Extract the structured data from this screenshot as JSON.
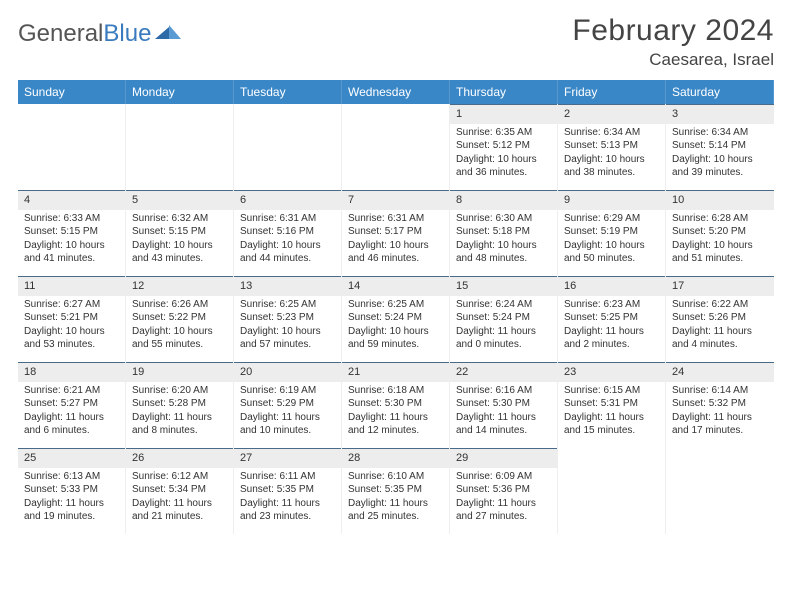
{
  "logo": {
    "text1": "General",
    "text2": "Blue"
  },
  "title": "February 2024",
  "location": "Caesarea, Israel",
  "header_bg": "#3a87c7",
  "daynum_bg": "#ededed",
  "daynum_border": "#4a6a8a",
  "dow": [
    "Sunday",
    "Monday",
    "Tuesday",
    "Wednesday",
    "Thursday",
    "Friday",
    "Saturday"
  ],
  "weeks": [
    [
      null,
      null,
      null,
      null,
      {
        "n": "1",
        "sr": "6:35 AM",
        "ss": "5:12 PM",
        "dl": "10 hours and 36 minutes."
      },
      {
        "n": "2",
        "sr": "6:34 AM",
        "ss": "5:13 PM",
        "dl": "10 hours and 38 minutes."
      },
      {
        "n": "3",
        "sr": "6:34 AM",
        "ss": "5:14 PM",
        "dl": "10 hours and 39 minutes."
      }
    ],
    [
      {
        "n": "4",
        "sr": "6:33 AM",
        "ss": "5:15 PM",
        "dl": "10 hours and 41 minutes."
      },
      {
        "n": "5",
        "sr": "6:32 AM",
        "ss": "5:15 PM",
        "dl": "10 hours and 43 minutes."
      },
      {
        "n": "6",
        "sr": "6:31 AM",
        "ss": "5:16 PM",
        "dl": "10 hours and 44 minutes."
      },
      {
        "n": "7",
        "sr": "6:31 AM",
        "ss": "5:17 PM",
        "dl": "10 hours and 46 minutes."
      },
      {
        "n": "8",
        "sr": "6:30 AM",
        "ss": "5:18 PM",
        "dl": "10 hours and 48 minutes."
      },
      {
        "n": "9",
        "sr": "6:29 AM",
        "ss": "5:19 PM",
        "dl": "10 hours and 50 minutes."
      },
      {
        "n": "10",
        "sr": "6:28 AM",
        "ss": "5:20 PM",
        "dl": "10 hours and 51 minutes."
      }
    ],
    [
      {
        "n": "11",
        "sr": "6:27 AM",
        "ss": "5:21 PM",
        "dl": "10 hours and 53 minutes."
      },
      {
        "n": "12",
        "sr": "6:26 AM",
        "ss": "5:22 PM",
        "dl": "10 hours and 55 minutes."
      },
      {
        "n": "13",
        "sr": "6:25 AM",
        "ss": "5:23 PM",
        "dl": "10 hours and 57 minutes."
      },
      {
        "n": "14",
        "sr": "6:25 AM",
        "ss": "5:24 PM",
        "dl": "10 hours and 59 minutes."
      },
      {
        "n": "15",
        "sr": "6:24 AM",
        "ss": "5:24 PM",
        "dl": "11 hours and 0 minutes."
      },
      {
        "n": "16",
        "sr": "6:23 AM",
        "ss": "5:25 PM",
        "dl": "11 hours and 2 minutes."
      },
      {
        "n": "17",
        "sr": "6:22 AM",
        "ss": "5:26 PM",
        "dl": "11 hours and 4 minutes."
      }
    ],
    [
      {
        "n": "18",
        "sr": "6:21 AM",
        "ss": "5:27 PM",
        "dl": "11 hours and 6 minutes."
      },
      {
        "n": "19",
        "sr": "6:20 AM",
        "ss": "5:28 PM",
        "dl": "11 hours and 8 minutes."
      },
      {
        "n": "20",
        "sr": "6:19 AM",
        "ss": "5:29 PM",
        "dl": "11 hours and 10 minutes."
      },
      {
        "n": "21",
        "sr": "6:18 AM",
        "ss": "5:30 PM",
        "dl": "11 hours and 12 minutes."
      },
      {
        "n": "22",
        "sr": "6:16 AM",
        "ss": "5:30 PM",
        "dl": "11 hours and 14 minutes."
      },
      {
        "n": "23",
        "sr": "6:15 AM",
        "ss": "5:31 PM",
        "dl": "11 hours and 15 minutes."
      },
      {
        "n": "24",
        "sr": "6:14 AM",
        "ss": "5:32 PM",
        "dl": "11 hours and 17 minutes."
      }
    ],
    [
      {
        "n": "25",
        "sr": "6:13 AM",
        "ss": "5:33 PM",
        "dl": "11 hours and 19 minutes."
      },
      {
        "n": "26",
        "sr": "6:12 AM",
        "ss": "5:34 PM",
        "dl": "11 hours and 21 minutes."
      },
      {
        "n": "27",
        "sr": "6:11 AM",
        "ss": "5:35 PM",
        "dl": "11 hours and 23 minutes."
      },
      {
        "n": "28",
        "sr": "6:10 AM",
        "ss": "5:35 PM",
        "dl": "11 hours and 25 minutes."
      },
      {
        "n": "29",
        "sr": "6:09 AM",
        "ss": "5:36 PM",
        "dl": "11 hours and 27 minutes."
      },
      null,
      null
    ]
  ],
  "labels": {
    "sunrise": "Sunrise:",
    "sunset": "Sunset:",
    "daylight": "Daylight:"
  }
}
